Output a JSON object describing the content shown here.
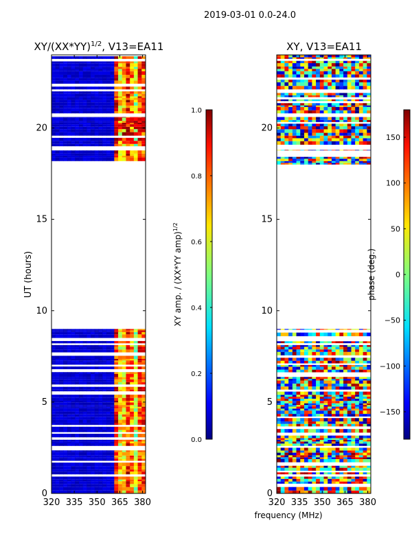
{
  "figure": {
    "suptitle": "2019-03-01 0.0-24.0",
    "shared_xlabel": "frequency (MHz)"
  },
  "chart_data": [
    {
      "type": "heatmap",
      "title_main": "XY/(XX*YY)",
      "title_sup": "1/2",
      "title_rest": ", V13=EA11",
      "xlabel": "",
      "ylabel": "UT (hours)",
      "xlim": [
        320,
        382
      ],
      "ylim": [
        0,
        24
      ],
      "xticks": [
        320,
        335,
        350,
        365,
        380
      ],
      "yticks": [
        0,
        5,
        10,
        15,
        20
      ],
      "ytick_labels": [
        "0",
        "5",
        "10",
        "15",
        "20"
      ],
      "data_blocks_hours": [
        [
          0.0,
          2.5
        ],
        [
          2.6,
          9.0
        ],
        [
          18.0,
          18.8
        ],
        [
          19.0,
          20.6
        ],
        [
          20.8,
          24.0
        ]
      ],
      "colorbar": {
        "label_main": "XY amp. / (XX*YY amp)",
        "label_sup": "1/2",
        "range": [
          0.0,
          1.0
        ],
        "ticks": [
          "0.0",
          "0.2",
          "0.4",
          "0.6",
          "0.8",
          "1.0"
        ],
        "colormap": "jet"
      }
    },
    {
      "type": "heatmap",
      "title_main": "XY, V13=EA11",
      "xlabel": "frequency (MHz)",
      "ylabel": "",
      "xlim": [
        320,
        382
      ],
      "ylim": [
        0,
        24
      ],
      "xticks": [
        320,
        335,
        350,
        365,
        380
      ],
      "yticks": [
        0,
        5,
        10,
        15,
        20
      ],
      "ytick_labels": [
        "0",
        "5",
        "10",
        "15",
        "20"
      ],
      "data_blocks_hours": [
        [
          0.0,
          2.5
        ],
        [
          2.6,
          9.0
        ],
        [
          18.0,
          18.8
        ],
        [
          19.0,
          20.6
        ],
        [
          20.8,
          24.0
        ]
      ],
      "colorbar": {
        "label_main": "phase (deg.)",
        "range": [
          -180,
          180
        ],
        "ticks": [
          "−150",
          "−100",
          "−50",
          "0",
          "50",
          "100",
          "150"
        ],
        "tick_values": [
          -150,
          -100,
          -50,
          0,
          50,
          100,
          150
        ],
        "colormap": "jet"
      }
    }
  ]
}
